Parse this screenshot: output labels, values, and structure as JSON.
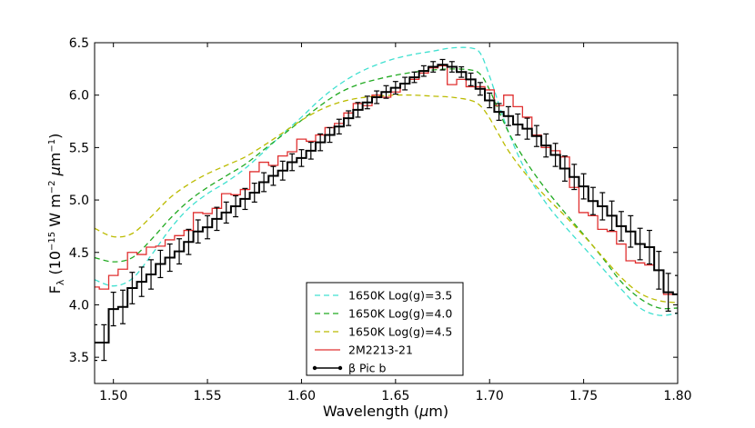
{
  "chart_data": {
    "type": "line",
    "title": "",
    "xlabel": "Wavelength (μm)",
    "ylabel": "Fλ (10⁻¹⁵ W m⁻² μm⁻¹)",
    "xlim": [
      1.49,
      1.8
    ],
    "ylim": [
      3.25,
      6.5
    ],
    "x_ticks": [
      1.5,
      1.55,
      1.6,
      1.65,
      1.7,
      1.75,
      1.8
    ],
    "x_tick_labels": [
      "1.50",
      "1.55",
      "1.60",
      "1.65",
      "1.70",
      "1.75",
      "1.80"
    ],
    "y_ticks": [
      3.5,
      4.0,
      4.5,
      5.0,
      5.5,
      6.0,
      6.5
    ],
    "y_tick_labels": [
      "3.5",
      "4.0",
      "4.5",
      "5.0",
      "5.5",
      "6.0",
      "6.5"
    ],
    "legend_position": "bottom-center",
    "series": [
      {
        "name": "1650K Log(g)=3.5",
        "style": "dashed",
        "color": "#40e0d0",
        "x": [
          1.49,
          1.5,
          1.51,
          1.52,
          1.53,
          1.54,
          1.55,
          1.56,
          1.57,
          1.58,
          1.59,
          1.6,
          1.61,
          1.62,
          1.63,
          1.64,
          1.65,
          1.66,
          1.67,
          1.68,
          1.69,
          1.695,
          1.7,
          1.71,
          1.72,
          1.73,
          1.74,
          1.75,
          1.76,
          1.77,
          1.78,
          1.79,
          1.8
        ],
        "y": [
          4.24,
          4.18,
          4.25,
          4.47,
          4.72,
          4.92,
          5.06,
          5.17,
          5.3,
          5.46,
          5.63,
          5.79,
          5.96,
          6.1,
          6.21,
          6.29,
          6.35,
          6.39,
          6.42,
          6.45,
          6.45,
          6.4,
          6.18,
          5.65,
          5.25,
          4.97,
          4.75,
          4.55,
          4.35,
          4.15,
          3.97,
          3.9,
          3.92
        ]
      },
      {
        "name": "1650K Log(g)=4.0",
        "style": "dashed",
        "color": "#22aa22",
        "x": [
          1.49,
          1.5,
          1.51,
          1.52,
          1.53,
          1.54,
          1.55,
          1.56,
          1.57,
          1.58,
          1.59,
          1.6,
          1.61,
          1.62,
          1.63,
          1.64,
          1.65,
          1.66,
          1.67,
          1.68,
          1.69,
          1.695,
          1.7,
          1.71,
          1.72,
          1.73,
          1.74,
          1.75,
          1.76,
          1.77,
          1.78,
          1.79,
          1.8
        ],
        "y": [
          4.45,
          4.41,
          4.45,
          4.62,
          4.82,
          4.99,
          5.12,
          5.23,
          5.34,
          5.48,
          5.62,
          5.76,
          5.9,
          6.02,
          6.1,
          6.15,
          6.19,
          6.22,
          6.24,
          6.25,
          6.24,
          6.2,
          6.05,
          5.65,
          5.35,
          5.1,
          4.88,
          4.67,
          4.45,
          4.22,
          4.06,
          3.97,
          3.97
        ]
      },
      {
        "name": "1650K Log(g)=4.5",
        "style": "dashed",
        "color": "#bbbb00",
        "x": [
          1.49,
          1.5,
          1.51,
          1.52,
          1.53,
          1.54,
          1.55,
          1.56,
          1.57,
          1.58,
          1.59,
          1.6,
          1.61,
          1.62,
          1.63,
          1.64,
          1.65,
          1.66,
          1.67,
          1.68,
          1.69,
          1.695,
          1.7,
          1.71,
          1.72,
          1.73,
          1.74,
          1.75,
          1.76,
          1.77,
          1.78,
          1.79,
          1.8
        ],
        "y": [
          4.73,
          4.65,
          4.68,
          4.84,
          5.02,
          5.15,
          5.25,
          5.33,
          5.41,
          5.52,
          5.64,
          5.76,
          5.86,
          5.93,
          5.97,
          5.99,
          6.0,
          6.0,
          5.99,
          5.98,
          5.95,
          5.9,
          5.78,
          5.47,
          5.23,
          5.03,
          4.85,
          4.66,
          4.46,
          4.26,
          4.11,
          4.04,
          4.02
        ]
      },
      {
        "name": "2M2213-21",
        "style": "step",
        "color": "#e03030",
        "x": [
          1.49,
          1.495,
          1.5,
          1.505,
          1.51,
          1.515,
          1.52,
          1.525,
          1.53,
          1.535,
          1.54,
          1.545,
          1.55,
          1.555,
          1.56,
          1.565,
          1.57,
          1.575,
          1.58,
          1.585,
          1.59,
          1.595,
          1.6,
          1.605,
          1.61,
          1.615,
          1.62,
          1.625,
          1.63,
          1.635,
          1.64,
          1.645,
          1.65,
          1.655,
          1.66,
          1.665,
          1.67,
          1.675,
          1.68,
          1.685,
          1.69,
          1.695,
          1.7,
          1.705,
          1.71,
          1.715,
          1.72,
          1.725,
          1.73,
          1.735,
          1.74,
          1.745,
          1.75,
          1.755,
          1.76,
          1.765,
          1.77,
          1.775,
          1.78,
          1.785,
          1.79,
          1.795,
          1.8
        ],
        "y": [
          4.17,
          4.15,
          4.28,
          4.34,
          4.5,
          4.48,
          4.55,
          4.56,
          4.62,
          4.66,
          4.71,
          4.88,
          4.87,
          4.92,
          5.06,
          5.05,
          5.1,
          5.27,
          5.36,
          5.33,
          5.42,
          5.46,
          5.58,
          5.56,
          5.62,
          5.69,
          5.73,
          5.83,
          5.92,
          5.9,
          6.0,
          5.98,
          6.03,
          6.11,
          6.15,
          6.21,
          6.26,
          6.28,
          6.1,
          6.15,
          6.08,
          6.08,
          6.05,
          5.9,
          6.0,
          5.89,
          5.79,
          5.62,
          5.5,
          5.47,
          5.41,
          5.12,
          4.88,
          4.85,
          4.72,
          4.7,
          4.58,
          4.42,
          4.4,
          4.38,
          4.33,
          4.1,
          4.1
        ]
      },
      {
        "name": "β Pic b",
        "style": "step-with-errorbars",
        "color": "#000000",
        "x": [
          1.49,
          1.495,
          1.5,
          1.505,
          1.51,
          1.515,
          1.52,
          1.525,
          1.53,
          1.535,
          1.54,
          1.545,
          1.55,
          1.555,
          1.56,
          1.565,
          1.57,
          1.575,
          1.58,
          1.585,
          1.59,
          1.595,
          1.6,
          1.605,
          1.61,
          1.615,
          1.62,
          1.625,
          1.63,
          1.635,
          1.64,
          1.645,
          1.65,
          1.655,
          1.66,
          1.665,
          1.67,
          1.675,
          1.68,
          1.685,
          1.69,
          1.695,
          1.7,
          1.705,
          1.71,
          1.715,
          1.72,
          1.725,
          1.73,
          1.735,
          1.74,
          1.745,
          1.75,
          1.755,
          1.76,
          1.765,
          1.77,
          1.775,
          1.78,
          1.785,
          1.79,
          1.795,
          1.8
        ],
        "y": [
          3.64,
          3.64,
          3.96,
          3.98,
          4.16,
          4.22,
          4.29,
          4.39,
          4.45,
          4.51,
          4.6,
          4.7,
          4.74,
          4.82,
          4.88,
          4.94,
          5.01,
          5.07,
          5.17,
          5.23,
          5.28,
          5.36,
          5.4,
          5.47,
          5.55,
          5.62,
          5.7,
          5.78,
          5.86,
          5.93,
          5.98,
          6.03,
          6.07,
          6.11,
          6.17,
          6.23,
          6.27,
          6.29,
          6.27,
          6.22,
          6.15,
          6.06,
          5.95,
          5.84,
          5.8,
          5.72,
          5.68,
          5.61,
          5.52,
          5.43,
          5.3,
          5.22,
          5.13,
          4.99,
          4.94,
          4.85,
          4.75,
          4.7,
          4.58,
          4.55,
          4.33,
          4.12,
          4.1
        ],
        "errors": [
          0.17,
          0.17,
          0.16,
          0.16,
          0.15,
          0.14,
          0.14,
          0.13,
          0.13,
          0.12,
          0.12,
          0.11,
          0.11,
          0.11,
          0.1,
          0.1,
          0.1,
          0.09,
          0.09,
          0.09,
          0.09,
          0.08,
          0.08,
          0.08,
          0.08,
          0.07,
          0.07,
          0.07,
          0.07,
          0.06,
          0.06,
          0.06,
          0.06,
          0.06,
          0.05,
          0.05,
          0.05,
          0.05,
          0.05,
          0.05,
          0.06,
          0.06,
          0.07,
          0.08,
          0.09,
          0.1,
          0.1,
          0.1,
          0.11,
          0.11,
          0.12,
          0.12,
          0.12,
          0.13,
          0.13,
          0.14,
          0.14,
          0.15,
          0.15,
          0.16,
          0.18,
          0.18,
          0.18
        ]
      }
    ]
  }
}
